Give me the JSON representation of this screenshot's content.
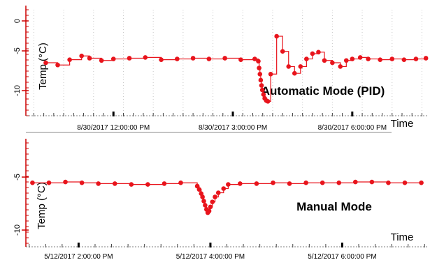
{
  "colors": {
    "series": "#e8141c",
    "axis": "#cc0000",
    "grid": "#c8c8c8",
    "text": "#000000"
  },
  "chart_data": [
    {
      "type": "line",
      "subtitle": "Automatic Mode (PID)",
      "ylabel": "Temp (°C)",
      "xlabel": "Time",
      "y_ticks": [
        "0",
        "-5",
        "-10"
      ],
      "ylim": [
        -12.5,
        1.5
      ],
      "x_tick_labels": [
        "8/30/2017 12:00:00 PM",
        "8/30/2017 3:00:00 PM",
        "8/30/2017 6:00:00 PM"
      ],
      "xlim_hours": [
        9.8,
        19.9
      ],
      "x_tick_hours": [
        12,
        15,
        18
      ],
      "grid": true,
      "line_style": "step",
      "series": [
        {
          "x_hours": [
            10.3,
            10.6,
            10.9,
            11.2,
            11.4,
            11.7,
            12.0,
            12.4,
            12.8,
            13.2,
            13.6,
            14.0,
            14.4,
            14.8,
            15.2,
            15.55,
            15.64,
            15.66,
            15.68,
            15.7,
            15.72,
            15.74,
            15.77,
            15.8,
            15.84,
            15.88,
            15.95,
            16.1,
            16.25,
            16.4,
            16.55,
            16.7,
            16.85,
            17.0,
            17.15,
            17.3,
            17.5,
            17.7,
            17.85,
            18.0,
            18.2,
            18.4,
            18.7,
            19.0,
            19.3,
            19.6,
            19.85
          ],
          "y": [
            -5.5,
            -5.8,
            -5.1,
            -4.6,
            -4.9,
            -5.2,
            -5.0,
            -4.9,
            -4.8,
            -5.1,
            -5.0,
            -4.9,
            -5.0,
            -4.9,
            -5.1,
            -5.0,
            -5.3,
            -6.2,
            -7.0,
            -7.8,
            -8.5,
            -9.1,
            -9.7,
            -10.2,
            -10.5,
            -10.6,
            -7.0,
            -2.0,
            -4.0,
            -6.0,
            -6.9,
            -6.0,
            -5.0,
            -4.3,
            -4.1,
            -5.2,
            -5.5,
            -6.0,
            -5.2,
            -5.0,
            -4.8,
            -5.0,
            -5.1,
            -5.0,
            -5.1,
            -5.0,
            -4.9
          ]
        }
      ]
    },
    {
      "type": "line",
      "subtitle": "Manual Mode",
      "ylabel": "Temp (°C)",
      "xlabel": "Time",
      "y_ticks": [
        "-5",
        "-10"
      ],
      "ylim": [
        -11.5,
        1.0
      ],
      "x_tick_labels": [
        "5/12/2017 2:00:00 PM",
        "5/12/2017 4:00:00 PM",
        "5/12/2017 6:00:00 PM"
      ],
      "xlim_hours": [
        13.2,
        19.3
      ],
      "x_tick_hours": [
        14,
        16,
        18
      ],
      "grid": false,
      "line_style": "step",
      "series": [
        {
          "x_hours": [
            13.3,
            13.55,
            13.8,
            14.05,
            14.3,
            14.55,
            14.8,
            15.05,
            15.3,
            15.55,
            15.8,
            15.83,
            15.86,
            15.88,
            15.9,
            15.92,
            15.94,
            15.96,
            15.98,
            16.0,
            16.03,
            16.07,
            16.12,
            16.2,
            16.27,
            16.45,
            16.7,
            16.95,
            17.2,
            17.45,
            17.7,
            17.95,
            18.2,
            18.45,
            18.7,
            18.95,
            19.2
          ],
          "y": [
            -3.8,
            -3.8,
            -3.7,
            -3.8,
            -3.9,
            -3.9,
            -4.0,
            -4.0,
            -3.9,
            -3.8,
            -4.2,
            -4.6,
            -5.1,
            -5.5,
            -6.0,
            -6.5,
            -7.0,
            -7.4,
            -7.2,
            -6.7,
            -6.1,
            -5.5,
            -5.0,
            -4.5,
            -4.0,
            -3.9,
            -3.9,
            -3.8,
            -3.9,
            -3.8,
            -3.8,
            -3.8,
            -3.7,
            -3.7,
            -3.8,
            -3.8,
            -3.8
          ]
        }
      ]
    }
  ]
}
